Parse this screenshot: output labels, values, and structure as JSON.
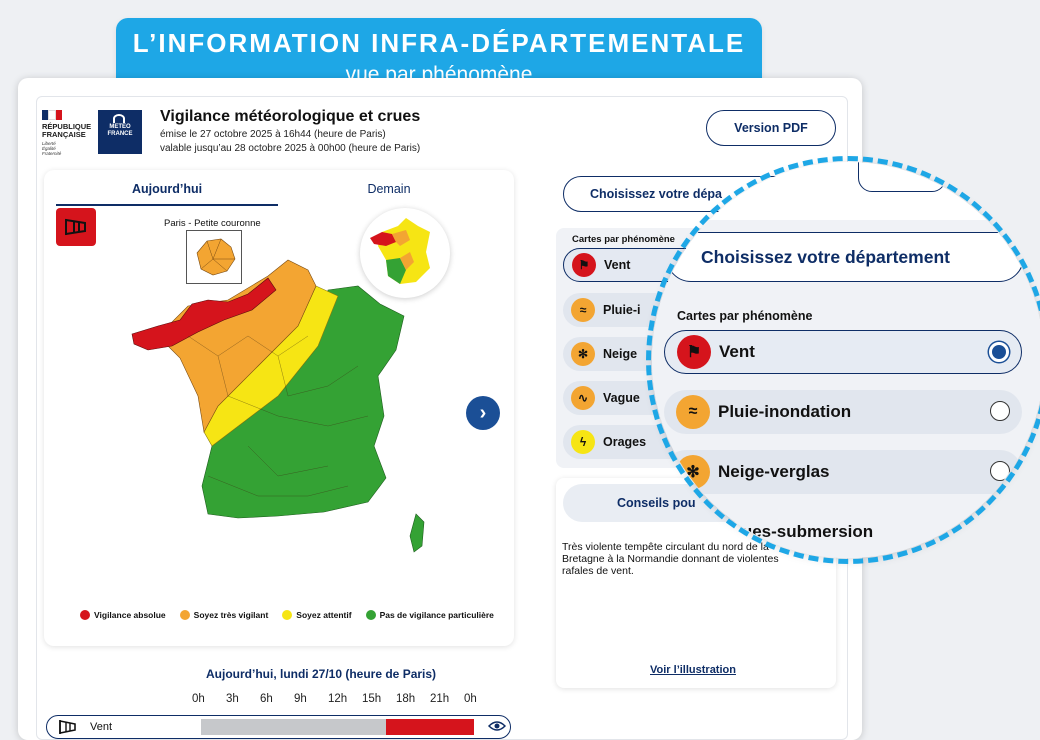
{
  "banner": {
    "title": "L’INFORMATION INFRA-DÉPARTEMENTALE",
    "subtitle": "vue par phénomène"
  },
  "logos": {
    "republic_lines": [
      "RÉPUBLIQUE",
      "FRANÇAISE"
    ],
    "republic_motto": [
      "Liberté",
      "Égalité",
      "Fraternité"
    ],
    "meteo_lines": [
      "METEO",
      "FRANCE"
    ]
  },
  "header": {
    "title": "Vigilance météorologique et crues",
    "emitted": "émise le 27 octobre 2025 à 16h44 (heure de Paris)",
    "valid_until": "valable jusqu’au 28 octobre 2025 à 00h00 (heure de Paris)",
    "pdf_button": "Version PDF"
  },
  "map": {
    "tabs": [
      "Aujourd’hui",
      "Demain"
    ],
    "inset_label": "Paris - Petite couronne",
    "legend": [
      {
        "label": "Vigilance absolue",
        "color": "#d5141c"
      },
      {
        "label": "Soyez très vigilant",
        "color": "#f3a532"
      },
      {
        "label": "Soyez attentif",
        "color": "#f6e514"
      },
      {
        "label": "Pas de vigilance particulière",
        "color": "#34a234"
      }
    ],
    "next_icon": "chevron-right-icon"
  },
  "timeline": {
    "title": "Aujourd’hui, lundi 27/10 (heure de Paris)",
    "hours": [
      "0h",
      "3h",
      "6h",
      "9h",
      "12h",
      "15h",
      "18h",
      "21h",
      "0h"
    ],
    "row_label": "Vent"
  },
  "side": {
    "dept_button": "Choisissez votre dépa",
    "phen_title": "Cartes par phénomène",
    "phenomena": [
      {
        "label": "Vent",
        "icon": "wind-icon",
        "color": "#d5141c"
      },
      {
        "label": "Pluie-i",
        "icon": "rain-flood-icon",
        "color": "#f3a532"
      },
      {
        "label": "Neige",
        "icon": "snow-ice-icon",
        "color": "#f3a532"
      },
      {
        "label": "Vague",
        "icon": "wave-icon",
        "color": "#f3a532"
      },
      {
        "label": "Orages",
        "icon": "lightning-icon",
        "color": "#f6e514"
      }
    ],
    "advice_button": "Conseils pou",
    "advice_text": "Très violente tempête circulant du nord de la Bretagne à la Normandie donnant de violentes rafales de vent.",
    "illustration_link": "Voir l’illustration"
  },
  "magnifier": {
    "dept_button": "Choisissez votre département",
    "phen_title": "Cartes par phénomène",
    "items": [
      {
        "label": "Vent",
        "selected": true
      },
      {
        "label": "Pluie-inondation",
        "selected": false
      },
      {
        "label": "Neige-verglas",
        "selected": false
      }
    ],
    "partial_item": "agues-submersion"
  }
}
